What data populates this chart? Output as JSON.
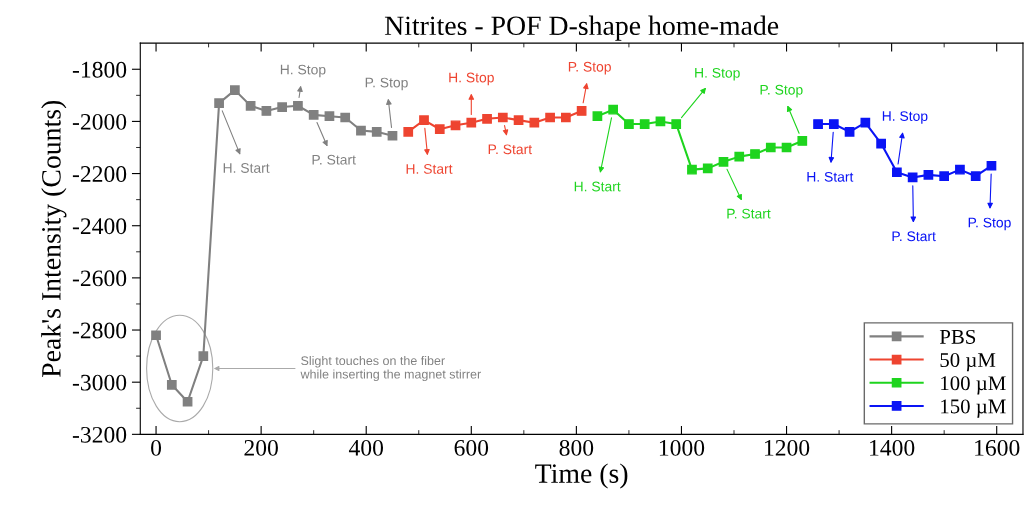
{
  "chart_data": {
    "type": "line",
    "title": "Nitrites - POF D-shape home-made",
    "xlabel": "Time (s)",
    "ylabel": "Peak's Intensity (Counts)",
    "xlim": [
      -30,
      1650
    ],
    "ylim": [
      -3200,
      -1700
    ],
    "xticks": [
      0,
      {
        "value": 100,
        "label": null
      },
      200,
      {
        "value": 300,
        "label": null
      },
      400,
      {
        "value": 500,
        "label": null
      },
      600,
      {
        "value": 700,
        "label": null
      },
      800,
      {
        "value": 900,
        "label": null
      },
      1000,
      {
        "value": 1100,
        "label": null
      },
      1200,
      {
        "value": 1300,
        "label": null
      },
      1400,
      {
        "value": 1500,
        "label": null
      },
      1600
    ],
    "yticks": [
      -3200,
      {
        "value": -3100,
        "label": null
      },
      -3000,
      {
        "value": -2900,
        "label": null
      },
      -2800,
      {
        "value": -2700,
        "label": null
      },
      -2600,
      {
        "value": -2500,
        "label": null
      },
      -2400,
      {
        "value": -2300,
        "label": null
      },
      -2200,
      {
        "value": -2100,
        "label": null
      },
      -2000,
      {
        "value": -1900,
        "label": null
      },
      -1800
    ],
    "marker": "square",
    "line_style": "solid",
    "grid": false,
    "legend": "bottom right",
    "series": [
      {
        "name": "PBS",
        "color": "#808080",
        "x": [
          0,
          30,
          60,
          90,
          120,
          150,
          180,
          210,
          240,
          270,
          300,
          330,
          360,
          390,
          420,
          450
        ],
        "values": [
          -2820,
          -3010,
          -3075,
          -2900,
          -1930,
          -1880,
          -1940,
          -1960,
          -1945,
          -1940,
          -1975,
          -1980,
          -1985,
          -2035,
          -2040,
          -2055
        ]
      },
      {
        "name": "50 µM",
        "color": "#ee4430",
        "x": [
          480,
          510,
          540,
          570,
          600,
          630,
          660,
          690,
          720,
          750,
          780,
          810
        ],
        "values": [
          -2040,
          -1995,
          -2030,
          -2015,
          -2005,
          -1990,
          -1985,
          -1995,
          -2005,
          -1985,
          -1985,
          -1960
        ]
      },
      {
        "name": "100 µM",
        "color": "#1ed41e",
        "x": [
          840,
          870,
          900,
          930,
          960,
          990,
          1020,
          1050,
          1080,
          1110,
          1140,
          1170,
          1200,
          1230
        ],
        "values": [
          -1980,
          -1955,
          -2010,
          -2010,
          -2000,
          -2010,
          -2185,
          -2180,
          -2155,
          -2135,
          -2125,
          -2100,
          -2100,
          -2075
        ]
      },
      {
        "name": "150 µM",
        "color": "#0a14f5",
        "x": [
          1260,
          1290,
          1320,
          1350,
          1380,
          1410,
          1440,
          1470,
          1500,
          1530,
          1560,
          1590
        ],
        "values": [
          -2010,
          -2010,
          -2040,
          -2005,
          -2085,
          -2195,
          -2215,
          -2205,
          -2210,
          -2185,
          -2210,
          -2170
        ]
      }
    ],
    "annotations": [
      {
        "text": "H. Start",
        "x": 120,
        "y": -1930
      },
      {
        "text": "H. Stop",
        "x": 270,
        "y": -1940
      },
      {
        "text": "P. Start",
        "x": 300,
        "y": -1975
      },
      {
        "text": "P. Stop",
        "x": 450,
        "y": -2055
      },
      {
        "text": "H. Start",
        "x": 510,
        "y": -1995
      },
      {
        "text": "H. Stop",
        "x": 600,
        "y": -2005
      },
      {
        "text": "P. Start",
        "x": 660,
        "y": -1985
      },
      {
        "text": "P. Stop",
        "x": 810,
        "y": -1960
      },
      {
        "text": "H. Start",
        "x": 870,
        "y": -1955
      },
      {
        "text": "H. Stop",
        "x": 990,
        "y": -2010
      },
      {
        "text": "P. Start",
        "x": 1080,
        "y": -2155
      },
      {
        "text": "P. Stop",
        "x": 1230,
        "y": -2075
      },
      {
        "text": "H. Start",
        "x": 1290,
        "y": -2010
      },
      {
        "text": "H. Stop",
        "x": 1410,
        "y": -2195
      },
      {
        "text": "P. Start",
        "x": 1440,
        "y": -2215
      },
      {
        "text": "P. Stop",
        "x": 1590,
        "y": -2170
      },
      "Slight touches on the fiber\nwhile inserting the magnet stirrer"
    ]
  }
}
